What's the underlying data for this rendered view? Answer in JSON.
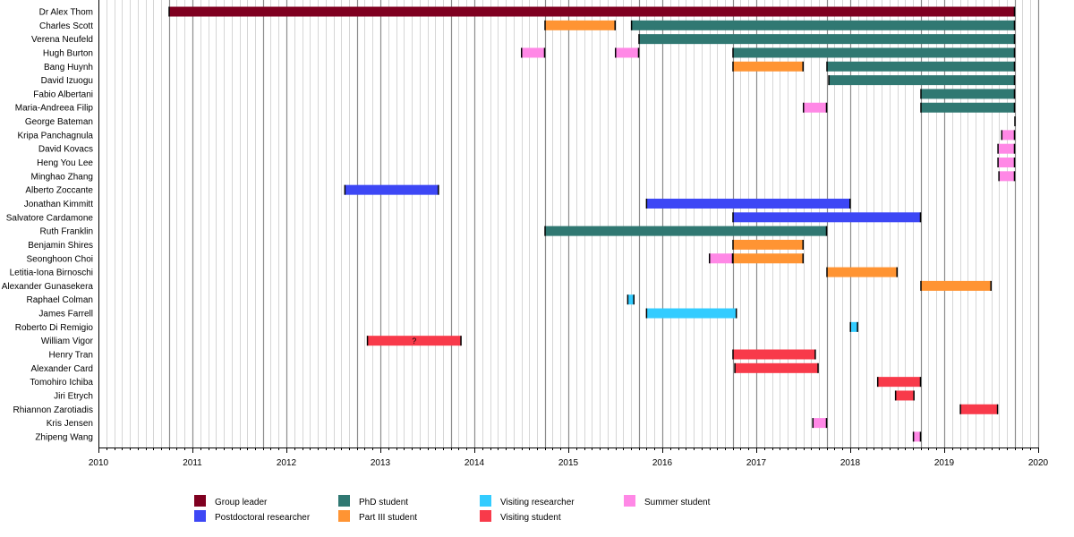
{
  "chart_data": {
    "type": "gantt",
    "title": "",
    "xlabel": "",
    "ylabel": "",
    "xlim": [
      2010,
      2020
    ],
    "x_ticks": [
      "2010",
      "2011",
      "2012",
      "2013",
      "2014",
      "2015",
      "2016",
      "2017",
      "2018",
      "2019",
      "2020"
    ],
    "grid": "monthly light lines; dark lines at each year start and each October",
    "legend_position": "bottom",
    "categories": {
      "group_leader": {
        "label": "Group leader",
        "color": "#7f0020"
      },
      "postdoc": {
        "label": "Postdoctoral researcher",
        "color": "#3d47f5"
      },
      "phd": {
        "label": "PhD student",
        "color": "#307872"
      },
      "part3": {
        "label": "Part III student",
        "color": "#ff9433"
      },
      "visiting_researcher": {
        "label": "Visiting researcher",
        "color": "#33ccff"
      },
      "visiting_student": {
        "label": "Visiting student",
        "color": "#f83a4a"
      },
      "summer": {
        "label": "Summer student",
        "color": "#ff88e6"
      }
    },
    "legend_order": [
      [
        "group_leader",
        "postdoc"
      ],
      [
        "phd",
        "part3"
      ],
      [
        "visiting_researcher",
        "visiting_student"
      ],
      [
        "summer"
      ]
    ],
    "people": [
      {
        "name": "Dr Alex Thom",
        "periods": [
          {
            "role": "group_leader",
            "start": 2010.75,
            "end": 2019.75
          }
        ]
      },
      {
        "name": "Charles Scott",
        "periods": [
          {
            "role": "part3",
            "start": 2014.75,
            "end": 2015.5
          },
          {
            "role": "phd",
            "start": 2015.67,
            "end": 2019.75
          }
        ]
      },
      {
        "name": "Verena Neufeld",
        "periods": [
          {
            "role": "phd",
            "start": 2015.75,
            "end": 2019.75
          }
        ]
      },
      {
        "name": "Hugh Burton",
        "periods": [
          {
            "role": "summer",
            "start": 2014.5,
            "end": 2014.75
          },
          {
            "role": "summer",
            "start": 2015.5,
            "end": 2015.75
          },
          {
            "role": "phd",
            "start": 2016.75,
            "end": 2019.75
          }
        ]
      },
      {
        "name": "Bang Huynh",
        "periods": [
          {
            "role": "part3",
            "start": 2016.75,
            "end": 2017.5
          },
          {
            "role": "phd",
            "start": 2017.75,
            "end": 2019.75
          }
        ]
      },
      {
        "name": "David Izuogu",
        "periods": [
          {
            "role": "phd",
            "start": 2017.77,
            "end": 2019.75
          }
        ]
      },
      {
        "name": "Fabio Albertani",
        "periods": [
          {
            "role": "phd",
            "start": 2018.75,
            "end": 2019.75
          }
        ]
      },
      {
        "name": "Maria-Andreea Filip",
        "periods": [
          {
            "role": "summer",
            "start": 2017.5,
            "end": 2017.75
          },
          {
            "role": "phd",
            "start": 2018.75,
            "end": 2019.75
          }
        ]
      },
      {
        "name": "George Bateman",
        "periods": [
          {
            "role": "summer",
            "start": 2019.75,
            "end": 2019.75
          }
        ]
      },
      {
        "name": "Kripa Panchagnula",
        "periods": [
          {
            "role": "summer",
            "start": 2019.61,
            "end": 2019.75
          }
        ]
      },
      {
        "name": "David Kovacs",
        "periods": [
          {
            "role": "summer",
            "start": 2019.57,
            "end": 2019.75
          }
        ]
      },
      {
        "name": "Heng You Lee",
        "periods": [
          {
            "role": "summer",
            "start": 2019.57,
            "end": 2019.75
          }
        ]
      },
      {
        "name": "Minghao Zhang",
        "periods": [
          {
            "role": "summer",
            "start": 2019.58,
            "end": 2019.75
          }
        ]
      },
      {
        "name": "Alberto Zoccante",
        "periods": [
          {
            "role": "postdoc",
            "start": 2012.62,
            "end": 2013.62
          }
        ]
      },
      {
        "name": "Jonathan Kimmitt",
        "periods": [
          {
            "role": "postdoc",
            "start": 2015.83,
            "end": 2018.0
          }
        ]
      },
      {
        "name": "Salvatore Cardamone",
        "periods": [
          {
            "role": "postdoc",
            "start": 2016.75,
            "end": 2018.75
          }
        ]
      },
      {
        "name": "Ruth Franklin",
        "periods": [
          {
            "role": "phd",
            "start": 2014.75,
            "end": 2017.75
          }
        ]
      },
      {
        "name": "Benjamin Shires",
        "periods": [
          {
            "role": "part3",
            "start": 2016.75,
            "end": 2017.5
          }
        ]
      },
      {
        "name": "Seonghoon Choi",
        "periods": [
          {
            "role": "summer",
            "start": 2016.5,
            "end": 2016.75
          },
          {
            "role": "part3",
            "start": 2016.75,
            "end": 2017.5
          }
        ]
      },
      {
        "name": "Letitia-Iona Birnoschi",
        "periods": [
          {
            "role": "part3",
            "start": 2017.75,
            "end": 2018.5
          }
        ]
      },
      {
        "name": "Alexander Gunasekera",
        "periods": [
          {
            "role": "part3",
            "start": 2018.75,
            "end": 2019.5
          }
        ]
      },
      {
        "name": "Raphael Colman",
        "periods": [
          {
            "role": "visiting_researcher",
            "start": 2015.63,
            "end": 2015.7
          }
        ]
      },
      {
        "name": "James Farrell",
        "periods": [
          {
            "role": "visiting_researcher",
            "start": 2015.83,
            "end": 2016.79
          }
        ]
      },
      {
        "name": "Roberto Di Remigio",
        "periods": [
          {
            "role": "visiting_researcher",
            "start": 2018.0,
            "end": 2018.08
          }
        ]
      },
      {
        "name": "William Vigor",
        "periods": [
          {
            "role": "visiting_student",
            "start": 2012.86,
            "end": 2013.86,
            "note": "?"
          }
        ]
      },
      {
        "name": "Henry Tran",
        "periods": [
          {
            "role": "visiting_student",
            "start": 2016.75,
            "end": 2017.63
          }
        ]
      },
      {
        "name": "Alexander Card",
        "periods": [
          {
            "role": "visiting_student",
            "start": 2016.77,
            "end": 2017.66
          }
        ]
      },
      {
        "name": "Tomohiro Ichiba",
        "periods": [
          {
            "role": "visiting_student",
            "start": 2018.29,
            "end": 2018.75
          }
        ]
      },
      {
        "name": "Jiri Etrych",
        "periods": [
          {
            "role": "visiting_student",
            "start": 2018.48,
            "end": 2018.68
          }
        ]
      },
      {
        "name": "Rhiannon Zarotiadis",
        "periods": [
          {
            "role": "visiting_student",
            "start": 2019.17,
            "end": 2019.57
          }
        ]
      },
      {
        "name": "Kris Jensen",
        "periods": [
          {
            "role": "summer",
            "start": 2017.6,
            "end": 2017.75
          }
        ]
      },
      {
        "name": "Zhipeng Wang",
        "periods": [
          {
            "role": "summer",
            "start": 2018.67,
            "end": 2018.75
          }
        ]
      }
    ]
  }
}
